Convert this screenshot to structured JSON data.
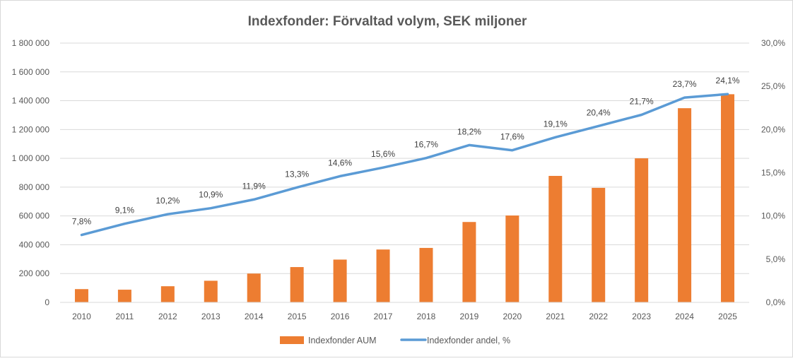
{
  "chart_data": {
    "type": "bar",
    "title": "Indexfonder: Förvaltad volym, SEK miljoner",
    "categories": [
      "2010",
      "2011",
      "2012",
      "2013",
      "2014",
      "2015",
      "2016",
      "2017",
      "2018",
      "2019",
      "2020",
      "2021",
      "2022",
      "2023",
      "2024",
      "2025"
    ],
    "series": [
      {
        "name": "Indexfonder AUM",
        "type": "bar",
        "axis": "left",
        "color": "#ED7D31",
        "values": [
          92000,
          88000,
          112000,
          150000,
          200000,
          245000,
          297000,
          367000,
          378000,
          558000,
          603000,
          878000,
          795000,
          1000000,
          1348000,
          1445000
        ]
      },
      {
        "name": "Indexfonder andel, %",
        "type": "line",
        "axis": "right",
        "color": "#5B9BD5",
        "values": [
          7.8,
          9.1,
          10.2,
          10.9,
          11.9,
          13.3,
          14.6,
          15.6,
          16.7,
          18.2,
          17.6,
          19.1,
          20.4,
          21.7,
          23.7,
          24.1
        ],
        "labels": [
          "7,8%",
          "9,1%",
          "10,2%",
          "10,9%",
          "11,9%",
          "13,3%",
          "14,6%",
          "15,6%",
          "16,7%",
          "18,2%",
          "17,6%",
          "19,1%",
          "20,4%",
          "21,7%",
          "23,7%",
          "24,1%"
        ]
      }
    ],
    "y_left": {
      "min": 0,
      "max": 1800000,
      "tick_values": [
        0,
        200000,
        400000,
        600000,
        800000,
        1000000,
        1200000,
        1400000,
        1600000,
        1800000
      ],
      "tick_labels": [
        "0",
        "200 000",
        "400 000",
        "600 000",
        "800 000",
        "1 000 000",
        "1 200 000",
        "1 400 000",
        "1 600 000",
        "1 800 000"
      ]
    },
    "y_right": {
      "min": 0,
      "max": 30,
      "tick_values": [
        0,
        5,
        10,
        15,
        20,
        25,
        30
      ],
      "tick_labels": [
        "0,0%",
        "5,0%",
        "10,0%",
        "15,0%",
        "20,0%",
        "25,0%",
        "30,0%"
      ]
    },
    "grid": true,
    "legend": "bottom"
  }
}
